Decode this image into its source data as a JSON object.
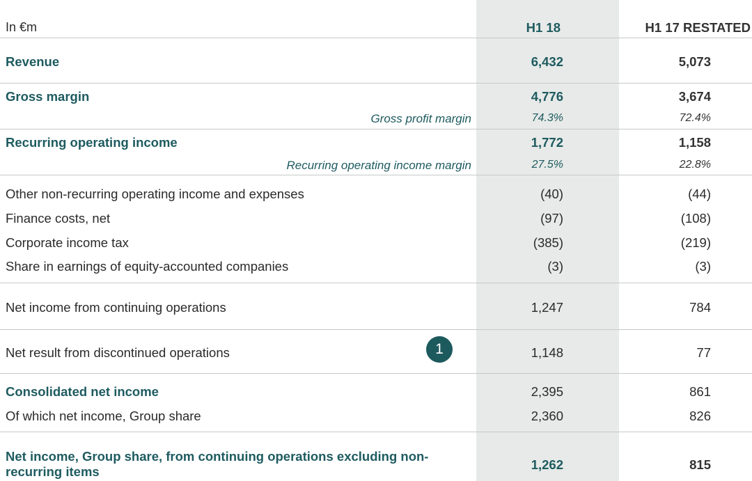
{
  "header": {
    "unit": "In €m",
    "col1": "H1 18",
    "col2": "H1 17 RESTATED"
  },
  "rows": {
    "revenue": {
      "label": "Revenue",
      "h1_18": "6,432",
      "h1_17": "5,073"
    },
    "gross_margin": {
      "label": "Gross margin",
      "h1_18": "4,776",
      "h1_17": "3,674"
    },
    "gross_profit_margin": {
      "label": "Gross profit margin",
      "h1_18": "74.3%",
      "h1_17": "72.4%"
    },
    "recurring_operating_income": {
      "label": "Recurring operating income",
      "h1_18": "1,772",
      "h1_17": "1,158"
    },
    "recurring_operating_income_margin": {
      "label": "Recurring operating income margin",
      "h1_18": "27.5%",
      "h1_17": "22.8%"
    },
    "other_non_recurring": {
      "label": "Other non-recurring operating income and expenses",
      "h1_18": "(40)",
      "h1_17": "(44)"
    },
    "finance_costs": {
      "label": "Finance costs, net",
      "h1_18": "(97)",
      "h1_17": "(108)"
    },
    "corporate_income_tax": {
      "label": "Corporate income tax",
      "h1_18": "(385)",
      "h1_17": "(219)"
    },
    "share_in_earnings": {
      "label": "Share in earnings of equity-accounted companies",
      "h1_18": "(3)",
      "h1_17": "(3)"
    },
    "net_income_continuing": {
      "label": "Net income from continuing operations",
      "h1_18": "1,247",
      "h1_17": "784"
    },
    "net_result_discontinued": {
      "label": "Net result from discontinued operations",
      "badge": "1",
      "h1_18": "1,148",
      "h1_17": "77"
    },
    "consolidated_net_income": {
      "label": "Consolidated net income",
      "h1_18": "2,395",
      "h1_17": "861"
    },
    "group_share": {
      "label": "Of which net income, Group share",
      "h1_18": "2,360",
      "h1_17": "826"
    },
    "net_income_excl_nonrecurring": {
      "label": "Net income, Group share, from continuing operations excluding non-recurring items",
      "h1_18": "1,262",
      "h1_17": "815"
    }
  }
}
